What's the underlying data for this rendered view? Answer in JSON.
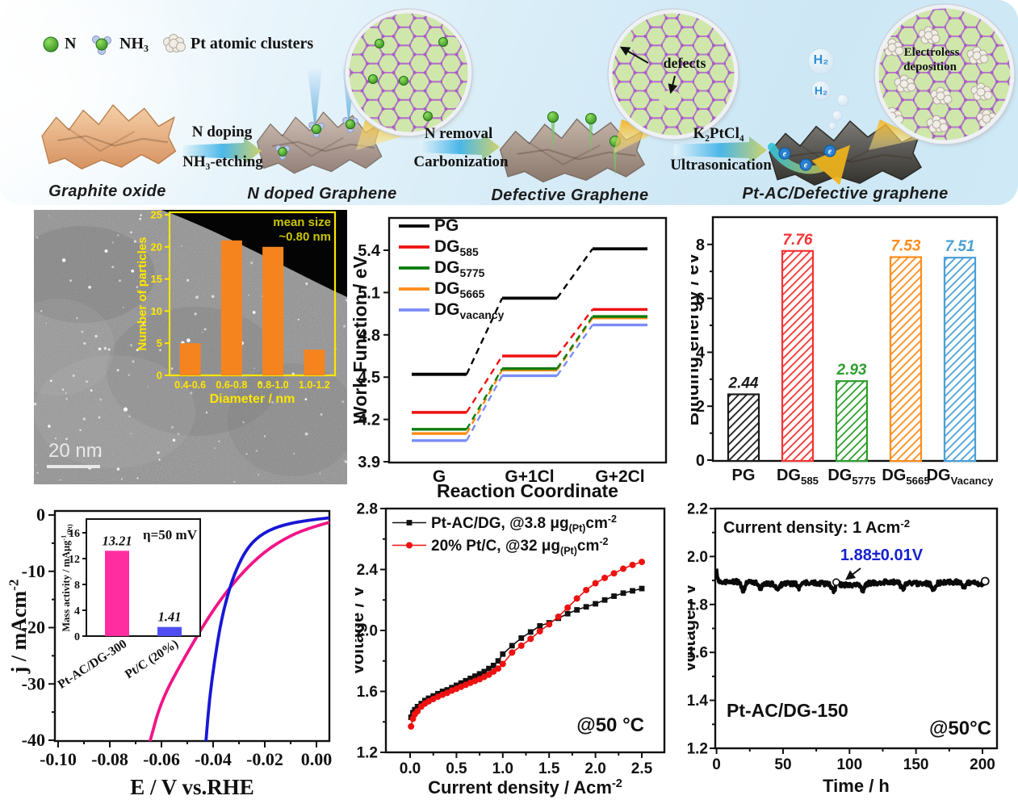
{
  "scheme": {
    "legend": [
      {
        "icon": "n-atom-icon",
        "label": "N"
      },
      {
        "icon": "nh3-molecule-icon",
        "label": "NH₃"
      },
      {
        "icon": "pt-cluster-icon",
        "label": "Pt atomic clusters"
      }
    ],
    "stages": [
      {
        "label": "Graphite oxide"
      },
      {
        "label": "N doped Graphene"
      },
      {
        "label": "Defective Graphene"
      },
      {
        "label": "Pt-AC/Defective graphene"
      }
    ],
    "arrows": [
      {
        "top": "N doping",
        "bottom": "NH₃-etching"
      },
      {
        "top": "N removal",
        "bottom": "Carbonization"
      },
      {
        "top": "K₂PtCl₄",
        "bottom": "Ultrasonication"
      }
    ],
    "callouts": {
      "defects": "defects",
      "electroless_line1": "Electroless",
      "electroless_line2": "deposition",
      "h2_1": "H₂",
      "h2_2": "H₂"
    }
  },
  "tem": {
    "scale_bar": "20 nm"
  },
  "chart_data": [
    {
      "id": "particle-size-histogram",
      "type": "bar",
      "categories": [
        "0.4-0.6",
        "0.6-0.8",
        "0.8-1.0",
        "1.0-1.2"
      ],
      "values": [
        5,
        21,
        20,
        4
      ],
      "xlabel": "Diameter / nm",
      "ylabel": "Number of particles",
      "ylim": [
        0,
        25
      ],
      "yticks": [
        0,
        5,
        10,
        15,
        20,
        25
      ],
      "annotation_line1": "mean size",
      "annotation_line2": "~0.80 nm",
      "bar_color": "#f5841f",
      "axis_color": "#ffe600",
      "annotation_color": "#c9c400",
      "legend_position": "none"
    },
    {
      "id": "work-function-diagram",
      "type": "line",
      "subtype": "step-levels",
      "xlabel": "Reaction Coordinate",
      "ylabel": "Work Function / eV",
      "categories": [
        "G",
        "G+1Cl",
        "G+2Cl"
      ],
      "ylim": [
        3.9,
        5.63
      ],
      "yticks": [
        3.9,
        4.2,
        4.5,
        4.8,
        5.1,
        5.4
      ],
      "ytick_labels": [
        "3.9",
        "4.2",
        "4.5",
        "4.8",
        "5.1",
        "5.4"
      ],
      "legend_position": "top-left",
      "series": [
        {
          "name": "PG",
          "color": "#000000",
          "values": [
            4.52,
            5.06,
            5.41
          ]
        },
        {
          "name": "DG_{585}",
          "color": "#ee1111",
          "values": [
            4.25,
            4.65,
            4.98
          ]
        },
        {
          "name": "DG_{5775}",
          "color": "#0a7d0a",
          "values": [
            4.13,
            4.56,
            4.93
          ]
        },
        {
          "name": "DG_{5665}",
          "color": "#ff8c1a",
          "values": [
            4.1,
            4.55,
            4.92
          ]
        },
        {
          "name": "DG_{vacancy}",
          "color": "#7b8cf5",
          "values": [
            4.05,
            4.51,
            4.87
          ]
        }
      ]
    },
    {
      "id": "binding-energy-bars",
      "type": "bar",
      "ylabel": "Binding energy / eV",
      "categories": [
        "PG",
        "DG_{585}",
        "DG_{5775}",
        "DG_{5665}",
        "DG_{Vacancy}"
      ],
      "values": [
        2.44,
        7.76,
        2.93,
        7.53,
        7.51
      ],
      "value_labels": [
        "2.44",
        "7.76",
        "2.93",
        "7.53",
        "7.51"
      ],
      "colors": [
        "#1a1a1a",
        "#f53333",
        "#2f9e2f",
        "#ff8c1a",
        "#4aa0d8"
      ],
      "ylim": [
        0,
        9.0
      ],
      "yticks": [
        0,
        2,
        4,
        6,
        8
      ],
      "hatch": "diagonal"
    },
    {
      "id": "her-lsv",
      "type": "line",
      "xlabel": "E / V vs.RHE",
      "ylabel": "j / mAcm^{-2}",
      "xlim": [
        -0.101,
        0.005
      ],
      "ylim": [
        -40.5,
        0.7
      ],
      "xticks": [
        -0.1,
        -0.08,
        -0.06,
        -0.04,
        -0.02,
        0.0
      ],
      "xtick_labels": [
        "-0.10",
        "-0.08",
        "-0.06",
        "-0.04",
        "-0.02",
        "0.00"
      ],
      "yticks": [
        0,
        -10,
        -20,
        -30,
        -40
      ],
      "series": [
        {
          "name": "Pt-AC/DG-300",
          "color": "#f21488",
          "points": [
            [
              0.005,
              -1.3
            ],
            [
              -0.002,
              -2.2
            ],
            [
              -0.01,
              -3.6
            ],
            [
              -0.02,
              -6.4
            ],
            [
              -0.03,
              -10.8
            ],
            [
              -0.04,
              -16.8
            ],
            [
              -0.05,
              -24.4
            ],
            [
              -0.06,
              -32.8
            ],
            [
              -0.0645,
              -40.3
            ]
          ]
        },
        {
          "name": "Pt/C (20%)",
          "color": "#1717d6",
          "points": [
            [
              0.005,
              -0.5
            ],
            [
              -0.005,
              -1.0
            ],
            [
              -0.015,
              -2.0
            ],
            [
              -0.022,
              -3.6
            ],
            [
              -0.027,
              -6.0
            ],
            [
              -0.031,
              -9.6
            ],
            [
              -0.034,
              -13.5
            ],
            [
              -0.037,
              -19.0
            ],
            [
              -0.0395,
              -26.0
            ],
            [
              -0.0415,
              -33.0
            ],
            [
              -0.0428,
              -40.3
            ]
          ]
        }
      ],
      "inset": {
        "type": "bar",
        "ylabel": "Mass activity / mAμg^{-1}_{(Pt)}",
        "annotation": "η=50 mV",
        "categories": [
          "Pt-AC/DG-300",
          "Pt/C (20%)"
        ],
        "values": [
          13.21,
          1.41
        ],
        "value_labels": [
          "13.21",
          "1.41"
        ],
        "colors": [
          "#ff2da0",
          "#4e4ef2"
        ],
        "ylim": [
          0,
          18
        ],
        "yticks": [
          0,
          4,
          8,
          12,
          16
        ]
      }
    },
    {
      "id": "mea-polarization",
      "type": "scatter",
      "xlabel": "Current density / Acm^{-2}",
      "ylabel": "Voltage / V",
      "annotation": "@50 °C",
      "xlim": [
        -0.26,
        2.74
      ],
      "ylim": [
        1.2,
        2.8
      ],
      "xticks": [
        0.0,
        0.5,
        1.0,
        1.5,
        2.0,
        2.5
      ],
      "xtick_labels": [
        "0.0",
        "0.5",
        "1.0",
        "1.5",
        "2.0",
        "2.5"
      ],
      "yticks": [
        1.2,
        1.6,
        2.0,
        2.4,
        2.8
      ],
      "ytick_labels": [
        "1.2",
        "1.6",
        "2.0",
        "2.4",
        "2.8"
      ],
      "legend_position": "top-left",
      "series": [
        {
          "name": "Pt-AC/DG, @3.8 μg_{(Pt)}cm^{-2}",
          "color": "#111111",
          "marker": "square",
          "points": [
            [
              0.01,
              1.43
            ],
            [
              0.03,
              1.46
            ],
            [
              0.05,
              1.48
            ],
            [
              0.08,
              1.5
            ],
            [
              0.12,
              1.52
            ],
            [
              0.16,
              1.54
            ],
            [
              0.2,
              1.555
            ],
            [
              0.25,
              1.57
            ],
            [
              0.3,
              1.585
            ],
            [
              0.35,
              1.6
            ],
            [
              0.4,
              1.61
            ],
            [
              0.45,
              1.625
            ],
            [
              0.5,
              1.64
            ],
            [
              0.55,
              1.655
            ],
            [
              0.6,
              1.67
            ],
            [
              0.65,
              1.685
            ],
            [
              0.7,
              1.7
            ],
            [
              0.75,
              1.715
            ],
            [
              0.8,
              1.73
            ],
            [
              0.85,
              1.75
            ],
            [
              0.9,
              1.77
            ],
            [
              0.95,
              1.8
            ],
            [
              1.0,
              1.845
            ],
            [
              1.1,
              1.9
            ],
            [
              1.2,
              1.95
            ],
            [
              1.3,
              1.99
            ],
            [
              1.4,
              2.03
            ],
            [
              1.5,
              2.05
            ],
            [
              1.6,
              2.08
            ],
            [
              1.7,
              2.11
            ],
            [
              1.8,
              2.135
            ],
            [
              1.9,
              2.155
            ],
            [
              2.0,
              2.175
            ],
            [
              2.1,
              2.2
            ],
            [
              2.2,
              2.225
            ],
            [
              2.3,
              2.245
            ],
            [
              2.4,
              2.26
            ],
            [
              2.5,
              2.275
            ]
          ]
        },
        {
          "name": "20% Pt/C, @32 μg_{(Pt)}cm^{-2}",
          "color": "#ee1111",
          "marker": "circle",
          "points": [
            [
              0.01,
              1.37
            ],
            [
              0.03,
              1.42
            ],
            [
              0.05,
              1.45
            ],
            [
              0.08,
              1.47
            ],
            [
              0.12,
              1.5
            ],
            [
              0.16,
              1.52
            ],
            [
              0.2,
              1.535
            ],
            [
              0.25,
              1.55
            ],
            [
              0.3,
              1.565
            ],
            [
              0.35,
              1.578
            ],
            [
              0.4,
              1.59
            ],
            [
              0.45,
              1.605
            ],
            [
              0.5,
              1.617
            ],
            [
              0.55,
              1.63
            ],
            [
              0.6,
              1.643
            ],
            [
              0.65,
              1.656
            ],
            [
              0.7,
              1.668
            ],
            [
              0.75,
              1.68
            ],
            [
              0.8,
              1.695
            ],
            [
              0.85,
              1.71
            ],
            [
              0.9,
              1.73
            ],
            [
              0.95,
              1.75
            ],
            [
              1.0,
              1.78
            ],
            [
              1.1,
              1.855
            ],
            [
              1.2,
              1.9
            ],
            [
              1.3,
              1.945
            ],
            [
              1.4,
              1.995
            ],
            [
              1.5,
              2.04
            ],
            [
              1.6,
              2.09
            ],
            [
              1.7,
              2.15
            ],
            [
              1.8,
              2.21
            ],
            [
              1.9,
              2.265
            ],
            [
              2.0,
              2.31
            ],
            [
              2.1,
              2.345
            ],
            [
              2.2,
              2.375
            ],
            [
              2.3,
              2.405
            ],
            [
              2.4,
              2.43
            ],
            [
              2.5,
              2.45
            ]
          ]
        }
      ]
    },
    {
      "id": "stability-test",
      "type": "line",
      "xlabel": "Time / h",
      "ylabel": "Voltage / V",
      "xlim": [
        -1,
        211
      ],
      "ylim": [
        1.2,
        2.2
      ],
      "xticks": [
        0,
        50,
        100,
        150,
        200
      ],
      "yticks": [
        1.2,
        1.4,
        1.6,
        1.8,
        2.0,
        2.2
      ],
      "ytick_labels": [
        "1.2",
        "1.4",
        "1.6",
        "1.8",
        "2.0",
        "2.2"
      ],
      "annotations": {
        "condition": "Current density: 1 Acm^{-2}",
        "mean_voltage": "1.88±0.01V",
        "sample": "Pt-AC/DG-150",
        "temperature": "@50°C"
      },
      "series": [
        {
          "name": "Pt-AC/DG-150",
          "color": "#000000",
          "baseline": 1.89,
          "noise_amplitude": 0.012,
          "duration_h": 202
        }
      ]
    }
  ]
}
